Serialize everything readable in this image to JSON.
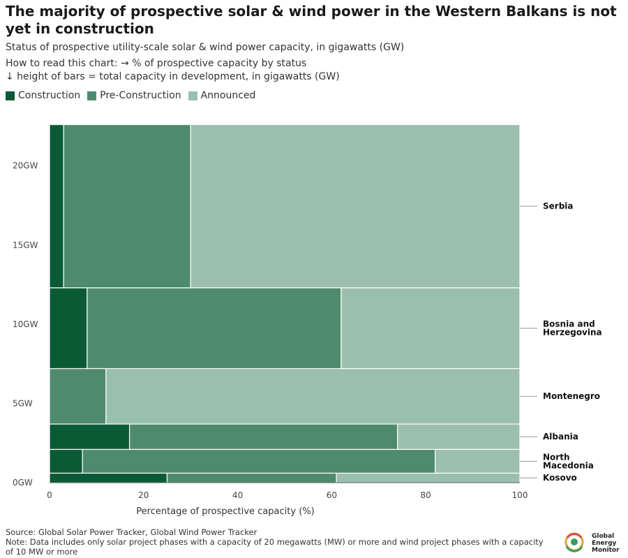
{
  "header": {
    "title": "The majority of prospective solar & wind power in the Western Balkans is not yet in construction",
    "subtitle": "Status of prospective utility-scale solar & wind power capacity, in gigawatts (GW)",
    "howto_1": "How to read this chart: → % of prospective capacity by status",
    "howto_2": "↓ height of bars = total capacity in development, in gigawatts (GW)"
  },
  "legend": [
    {
      "label": "Construction",
      "color": "#0b5a36"
    },
    {
      "label": "Pre-Construction",
      "color": "#4e8a6e"
    },
    {
      "label": "Announced",
      "color": "#9bbfae"
    }
  ],
  "chart_data": {
    "type": "marimekko",
    "xlabel": "Percentage of prospective capacity (%)",
    "x_ticks": [
      "0",
      "20",
      "40",
      "60",
      "80",
      "100"
    ],
    "x_range": [
      0,
      100
    ],
    "y_ticks": [
      "0GW",
      "5GW",
      "10GW",
      "15GW",
      "20GW"
    ],
    "y_range_gw": [
      0,
      23.2
    ],
    "statuses": [
      "Construction",
      "Pre-Construction",
      "Announced"
    ],
    "colors": {
      "Construction": "#0b5a36",
      "Pre-Construction": "#4e8a6e",
      "Announced": "#9bbfae"
    },
    "countries": [
      {
        "name": "Serbia",
        "capacity_gw": 10.3,
        "construction_pct": 3,
        "pre_construction_pct": 27,
        "announced_pct": 70
      },
      {
        "name": "Bosnia and Herzegovina",
        "capacity_gw": 5.1,
        "construction_pct": 8,
        "pre_construction_pct": 54,
        "announced_pct": 38
      },
      {
        "name": "Montenegro",
        "capacity_gw": 3.5,
        "construction_pct": 0,
        "pre_construction_pct": 12,
        "announced_pct": 88
      },
      {
        "name": "Albania",
        "capacity_gw": 1.6,
        "construction_pct": 17,
        "pre_construction_pct": 57,
        "announced_pct": 26
      },
      {
        "name": "North Macedonia",
        "capacity_gw": 1.5,
        "construction_pct": 7,
        "pre_construction_pct": 75,
        "announced_pct": 18
      },
      {
        "name": "Kosovo",
        "capacity_gw": 0.6,
        "construction_pct": 25,
        "pre_construction_pct": 36,
        "announced_pct": 39
      }
    ]
  },
  "footer": {
    "source": "Source: Global Solar Power Tracker, Global Wind Power Tracker",
    "note": "Note: Data includes only solar project phases with a capacity of 20 megawatts (MW) or more and wind project phases with a capacity of 10 MW or more"
  },
  "logo": {
    "line1": "Global",
    "line2": "Energy",
    "line3": "Monitor"
  }
}
